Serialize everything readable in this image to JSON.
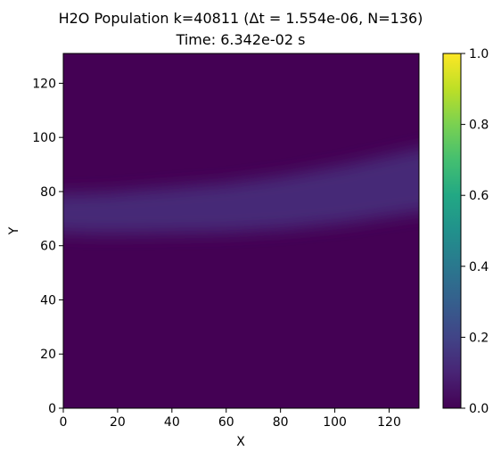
{
  "chart_data": {
    "type": "heatmap",
    "title_line1": "H2O Population k=40811 (Δt = 1.554e-06, N=136)",
    "title_line2": "Time: 6.342e-02 s",
    "xlabel": "X",
    "ylabel": "Y",
    "xlim": [
      0,
      131
    ],
    "ylim": [
      0,
      131
    ],
    "x_ticks": [
      0,
      20,
      40,
      60,
      80,
      100,
      120
    ],
    "y_ticks": [
      0,
      20,
      40,
      60,
      80,
      100,
      120
    ],
    "colorbar": {
      "colormap": "viridis",
      "range": [
        0.0,
        1.0
      ],
      "ticks": [
        "0.0",
        "0.2",
        "0.4",
        "0.6",
        "0.8",
        "1.0"
      ]
    },
    "band": {
      "peak_value": 0.12,
      "center_y": [
        {
          "x": 0,
          "y": 72
        },
        {
          "x": 20,
          "y": 72
        },
        {
          "x": 40,
          "y": 73
        },
        {
          "x": 60,
          "y": 74
        },
        {
          "x": 80,
          "y": 76
        },
        {
          "x": 100,
          "y": 79
        },
        {
          "x": 120,
          "y": 83
        },
        {
          "x": 131,
          "y": 85
        }
      ],
      "half_width_y": [
        {
          "x": 0,
          "y": 7
        },
        {
          "x": 60,
          "y": 9
        },
        {
          "x": 131,
          "y": 12
        }
      ]
    }
  }
}
